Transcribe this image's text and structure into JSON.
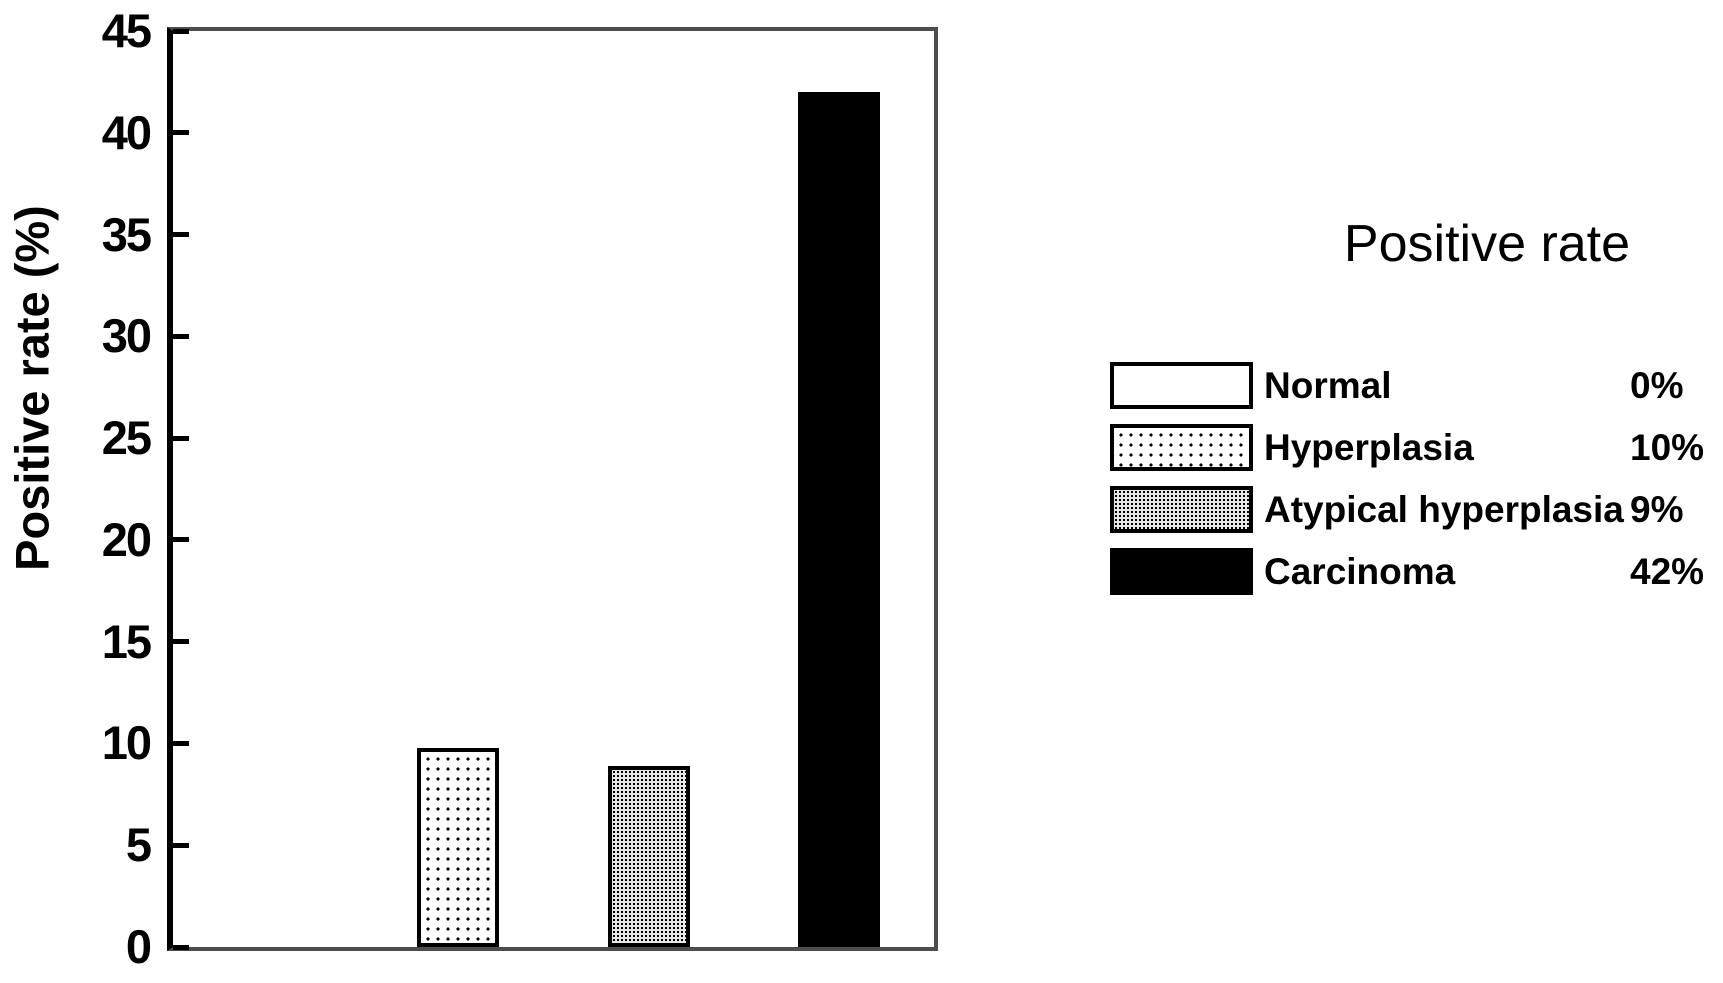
{
  "chart_data": {
    "type": "bar",
    "title": "",
    "xlabel": "",
    "ylabel": "Positive rate (%)",
    "ylim": [
      0,
      45
    ],
    "yticks": [
      0,
      5,
      10,
      15,
      20,
      25,
      30,
      35,
      40,
      45
    ],
    "grid": false,
    "categories": [
      "Normal",
      "Hyperplasia",
      "Atypical hyperplasia",
      "Carcinoma"
    ],
    "values": [
      0,
      9.8,
      8.9,
      42
    ],
    "series_patterns": [
      "white",
      "dots-sparse",
      "dots-dense",
      "solid-black"
    ],
    "legend": {
      "title": "Positive rate",
      "position": "right",
      "entries": [
        {
          "label": "Normal",
          "value": "0%",
          "pattern": "white"
        },
        {
          "label": "Hyperplasia",
          "value": "10%",
          "pattern": "dots-sparse"
        },
        {
          "label": "Atypical hyperplasia",
          "value": "9%",
          "pattern": "dots-dense"
        },
        {
          "label": "Carcinoma",
          "value": "42%",
          "pattern": "solid-black"
        }
      ]
    },
    "colors": {
      "bar_black": "#000000",
      "frame_gray": "#4d4d4d",
      "axis_black": "#000000",
      "background": "#ffffff"
    }
  }
}
